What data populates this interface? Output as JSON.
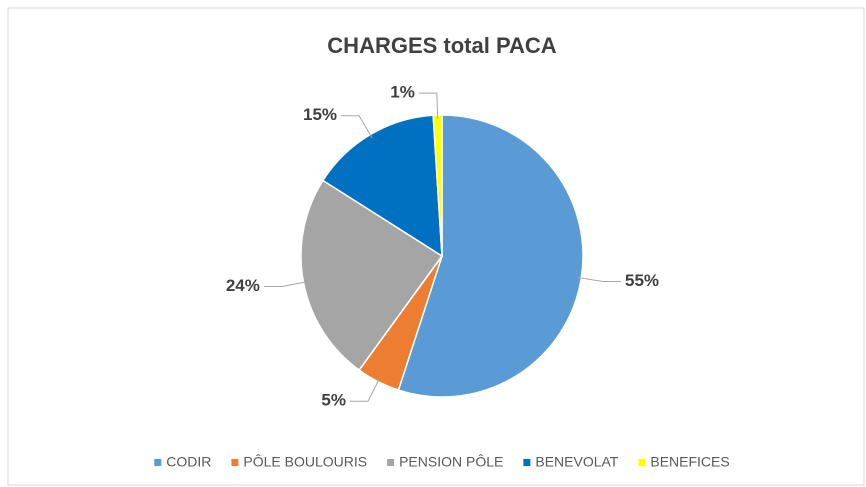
{
  "chart_data": {
    "type": "pie",
    "title": "CHARGES total PACA",
    "categories": [
      "CODIR",
      "PÔLE BOULOURIS",
      "PENSION PÔLE",
      "BENEVOLAT",
      "BENEFICES"
    ],
    "values": [
      55,
      5,
      24,
      15,
      1
    ],
    "value_labels": [
      "55%",
      "5%",
      "24%",
      "15%",
      "1%"
    ],
    "colors": [
      "#5b9bd5",
      "#ed7d31",
      "#a5a5a5",
      "#0070c0",
      "#ffff00"
    ],
    "legend": "bottom"
  }
}
